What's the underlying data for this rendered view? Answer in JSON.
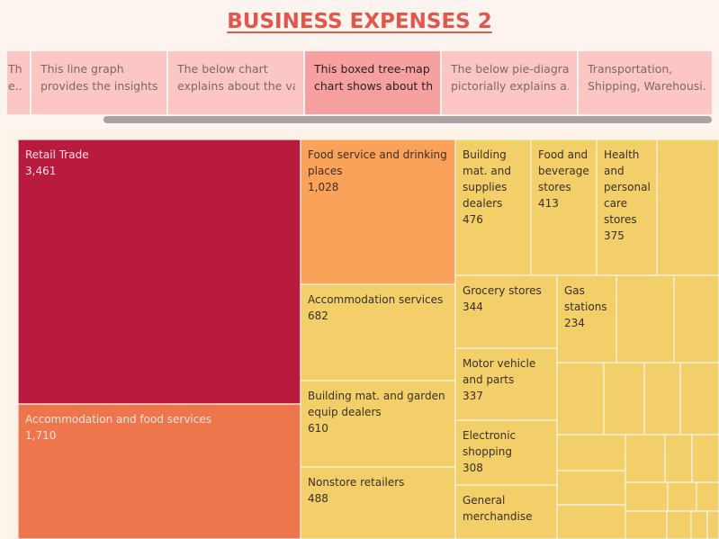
{
  "header": {
    "title": "BUSINESS EXPENSES 2"
  },
  "tabs": [
    {
      "lines": [
        "Th",
        "e.."
      ],
      "active": false
    },
    {
      "lines": [
        "This line graph",
        "provides the insights .."
      ],
      "active": false
    },
    {
      "lines": [
        "The below chart",
        "explains about the va.."
      ],
      "active": false
    },
    {
      "lines": [
        "This boxed tree-map",
        "chart shows about th.."
      ],
      "active": true
    },
    {
      "lines": [
        "The below pie-diagram",
        "pictorially explains a.."
      ],
      "active": false
    },
    {
      "lines": [
        "Transportation,",
        "Shipping, Warehousi.."
      ],
      "active": false
    }
  ],
  "colors": {
    "crimson": "#b81b3d",
    "coral": "#ee764d",
    "orange": "#fba25a",
    "yellow": "#f2cf69",
    "label_light": "#fbe3e3",
    "label_dark": "#3a2f26"
  },
  "chart_data": {
    "type": "treemap",
    "items": [
      {
        "name": "Retail Trade",
        "value": 3461,
        "label": "3,461"
      },
      {
        "name": "Accommodation and food services",
        "value": 1710,
        "label": "1,710"
      },
      {
        "name": "Food service and drinking places",
        "value": 1028,
        "label": "1,028"
      },
      {
        "name": "Accommodation services",
        "value": 682,
        "label": "682"
      },
      {
        "name": "Building mat. and garden equip dealers",
        "value": 610,
        "label": "610"
      },
      {
        "name": "Nonstore retailers",
        "value": 488,
        "label": "488"
      },
      {
        "name": "Building mat. and supplies dealers",
        "value": 476,
        "label": "476"
      },
      {
        "name": "Food and beverage stores",
        "value": 413,
        "label": "413"
      },
      {
        "name": "Health and personal care stores",
        "value": 375,
        "label": "375"
      },
      {
        "name": "Grocery stores",
        "value": 344,
        "label": "344"
      },
      {
        "name": "Motor vehicle and parts",
        "value": 337,
        "label": "337"
      },
      {
        "name": "Electronic shopping",
        "value": 308,
        "label": "308"
      },
      {
        "name": "Gas stations",
        "value": 234,
        "label": "234"
      },
      {
        "name": "General merchandise",
        "value": null,
        "label": ""
      }
    ]
  }
}
